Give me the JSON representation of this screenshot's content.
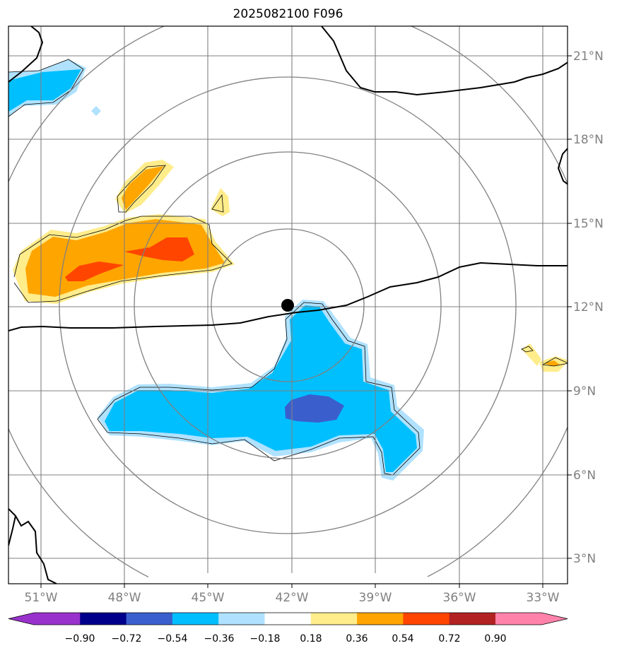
{
  "title": "2025082100 F096",
  "map": {
    "lat_labels": [
      "21°N",
      "18°N",
      "15°N",
      "12°N",
      "9°N",
      "6°N",
      "3°N"
    ],
    "lon_labels": [
      "51°W",
      "48°W",
      "45°W",
      "42°W",
      "39°W",
      "36°W",
      "33°W"
    ],
    "center_marker": {
      "lat": 12.1,
      "lon": -42.1
    },
    "range_ring_count": 4,
    "grid": true,
    "gridline_color": "#808080",
    "coastline_color": "#000000"
  },
  "colorbar": {
    "levels": [
      "−0.90",
      "−0.72",
      "−0.54",
      "−0.36",
      "−0.18",
      "0.18",
      "0.36",
      "0.54",
      "0.72",
      "0.90"
    ],
    "colors": [
      "#9932cc",
      "#00008b",
      "#3a5fcd",
      "#00bfff",
      "#b0e2ff",
      "#ffffff",
      "#ffec8b",
      "#ffa500",
      "#ff4500",
      "#b22222",
      "#ff82ab"
    ]
  }
}
